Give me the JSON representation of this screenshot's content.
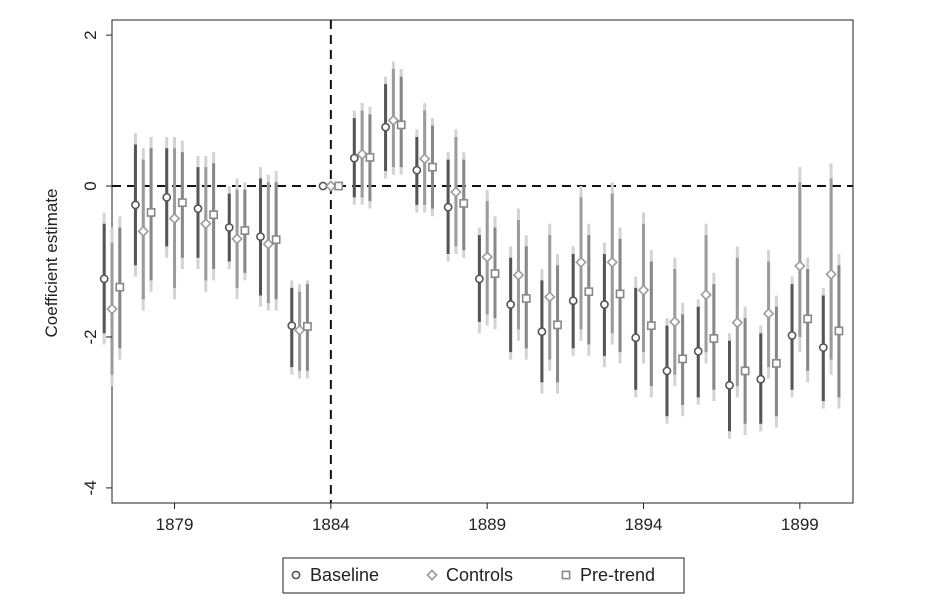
{
  "chart_data": {
    "type": "scatter",
    "xlabel": "",
    "ylabel": "Coefficient estimate",
    "xlim": [
      1877,
      1900.7
    ],
    "ylim": [
      -4.2,
      2.2
    ],
    "x_ticks": [
      "1879",
      "1884",
      "1889",
      "1894",
      "1899"
    ],
    "y_ticks": [
      "2",
      "0",
      "-2",
      "-4"
    ],
    "reference_lines": {
      "vertical_x": 1884,
      "horizontal_y": 0
    },
    "legend_position": "bottom",
    "series": [
      {
        "name": "Baseline",
        "marker": "circle",
        "color": "#555555",
        "offset": -0.25,
        "x": [
          1877,
          1878,
          1879,
          1880,
          1881,
          1882,
          1883,
          1884,
          1885,
          1886,
          1887,
          1888,
          1889,
          1890,
          1891,
          1892,
          1893,
          1894,
          1895,
          1896,
          1897,
          1898,
          1899,
          1900
        ],
        "y": [
          -1.23,
          -0.25,
          -0.15,
          -0.3,
          -0.55,
          -0.67,
          -1.85,
          0.0,
          0.37,
          0.78,
          0.21,
          -0.28,
          -1.23,
          -1.57,
          -1.93,
          -1.52,
          -1.57,
          -2.01,
          -2.45,
          -2.19,
          -2.64,
          -2.56,
          -1.98,
          -2.14
        ],
        "ci95": [
          [
            -2.1,
            -0.35
          ],
          [
            -1.2,
            0.7
          ],
          [
            -0.95,
            0.65
          ],
          [
            -1.1,
            0.4
          ],
          [
            -1.1,
            0.0
          ],
          [
            -1.6,
            0.25
          ],
          [
            -2.5,
            -1.25
          ],
          [
            0.0,
            0.0
          ],
          [
            -0.25,
            1.0
          ],
          [
            0.1,
            1.45
          ],
          [
            -0.35,
            0.75
          ],
          [
            -1.0,
            0.45
          ],
          [
            -1.95,
            -0.55
          ],
          [
            -2.3,
            -0.8
          ],
          [
            -2.75,
            -1.1
          ],
          [
            -2.25,
            -0.8
          ],
          [
            -2.4,
            -0.75
          ],
          [
            -2.8,
            -1.2
          ],
          [
            -3.15,
            -1.75
          ],
          [
            -2.9,
            -1.5
          ],
          [
            -3.35,
            -1.95
          ],
          [
            -3.25,
            -1.85
          ],
          [
            -2.8,
            -1.2
          ],
          [
            -2.95,
            -1.35
          ]
        ],
        "ci90": [
          [
            -1.95,
            -0.5
          ],
          [
            -1.05,
            0.55
          ],
          [
            -0.8,
            0.5
          ],
          [
            -0.95,
            0.25
          ],
          [
            -1.0,
            -0.1
          ],
          [
            -1.45,
            0.1
          ],
          [
            -2.4,
            -1.35
          ],
          [
            0.0,
            0.0
          ],
          [
            -0.15,
            0.9
          ],
          [
            0.2,
            1.35
          ],
          [
            -0.25,
            0.65
          ],
          [
            -0.9,
            0.35
          ],
          [
            -1.8,
            -0.65
          ],
          [
            -2.2,
            -0.95
          ],
          [
            -2.6,
            -1.25
          ],
          [
            -2.15,
            -0.9
          ],
          [
            -2.25,
            -0.9
          ],
          [
            -2.7,
            -1.35
          ],
          [
            -3.05,
            -1.85
          ],
          [
            -2.8,
            -1.6
          ],
          [
            -3.25,
            -2.05
          ],
          [
            -3.15,
            -1.95
          ],
          [
            -2.7,
            -1.3
          ],
          [
            -2.85,
            -1.45
          ]
        ]
      },
      {
        "name": "Controls",
        "marker": "diamond",
        "color": "#9b9b9b",
        "offset": 0.0,
        "x": [
          1877,
          1878,
          1879,
          1880,
          1881,
          1882,
          1883,
          1884,
          1885,
          1886,
          1887,
          1888,
          1889,
          1890,
          1891,
          1892,
          1893,
          1894,
          1895,
          1896,
          1897,
          1898,
          1899,
          1900
        ],
        "y": [
          -1.63,
          -0.6,
          -0.43,
          -0.5,
          -0.7,
          -0.77,
          -1.91,
          0.0,
          0.42,
          0.87,
          0.36,
          -0.08,
          -0.94,
          -1.18,
          -1.47,
          -1.01,
          -1.01,
          -1.38,
          -1.8,
          -1.44,
          -1.81,
          -1.69,
          -1.06,
          -1.17
        ],
        "ci95": [
          [
            -2.65,
            -0.55
          ],
          [
            -1.65,
            0.5
          ],
          [
            -1.5,
            0.65
          ],
          [
            -1.4,
            0.4
          ],
          [
            -1.5,
            0.1
          ],
          [
            -1.65,
            0.15
          ],
          [
            -2.55,
            -1.3
          ],
          [
            0.0,
            0.0
          ],
          [
            -0.25,
            1.1
          ],
          [
            0.15,
            1.65
          ],
          [
            -0.35,
            1.1
          ],
          [
            -0.9,
            0.75
          ],
          [
            -1.85,
            -0.05
          ],
          [
            -2.05,
            -0.3
          ],
          [
            -2.45,
            -0.5
          ],
          [
            -2.05,
            0.0
          ],
          [
            -2.1,
            0.05
          ],
          [
            -2.35,
            -0.35
          ],
          [
            -2.65,
            -0.95
          ],
          [
            -2.35,
            -0.5
          ],
          [
            -2.8,
            -0.8
          ],
          [
            -2.55,
            -0.85
          ],
          [
            -2.2,
            0.25
          ],
          [
            -2.5,
            0.3
          ]
        ],
        "ci90": [
          [
            -2.5,
            -0.75
          ],
          [
            -1.5,
            0.35
          ],
          [
            -1.35,
            0.5
          ],
          [
            -1.25,
            0.25
          ],
          [
            -1.35,
            -0.05
          ],
          [
            -1.55,
            0.05
          ],
          [
            -2.45,
            -1.4
          ],
          [
            0.0,
            0.0
          ],
          [
            -0.15,
            1.0
          ],
          [
            0.25,
            1.55
          ],
          [
            -0.25,
            1.0
          ],
          [
            -0.8,
            0.65
          ],
          [
            -1.7,
            -0.2
          ],
          [
            -1.9,
            -0.45
          ],
          [
            -2.3,
            -0.65
          ],
          [
            -1.9,
            -0.15
          ],
          [
            -1.95,
            -0.1
          ],
          [
            -2.2,
            -0.5
          ],
          [
            -2.5,
            -1.1
          ],
          [
            -2.2,
            -0.65
          ],
          [
            -2.65,
            -0.95
          ],
          [
            -2.4,
            -1.0
          ],
          [
            -2.0,
            0.05
          ],
          [
            -2.3,
            0.1
          ]
        ]
      },
      {
        "name": "Pre-trend",
        "marker": "square",
        "color": "#888888",
        "offset": 0.25,
        "x": [
          1877,
          1878,
          1879,
          1880,
          1881,
          1882,
          1883,
          1884,
          1885,
          1886,
          1887,
          1888,
          1889,
          1890,
          1891,
          1892,
          1893,
          1894,
          1895,
          1896,
          1897,
          1898,
          1899,
          1900
        ],
        "y": [
          -1.34,
          -0.35,
          -0.22,
          -0.38,
          -0.59,
          -0.71,
          -1.86,
          0.0,
          0.38,
          0.81,
          0.25,
          -0.23,
          -1.16,
          -1.49,
          -1.84,
          -1.4,
          -1.43,
          -1.85,
          -2.29,
          -2.02,
          -2.45,
          -2.35,
          -1.76,
          -1.92
        ],
        "ci95": [
          [
            -2.3,
            -0.4
          ],
          [
            -1.4,
            0.65
          ],
          [
            -1.1,
            0.6
          ],
          [
            -1.25,
            0.45
          ],
          [
            -1.25,
            0.05
          ],
          [
            -1.65,
            0.2
          ],
          [
            -2.55,
            -1.25
          ],
          [
            0.0,
            0.0
          ],
          [
            -0.3,
            1.05
          ],
          [
            0.15,
            1.55
          ],
          [
            -0.4,
            0.9
          ],
          [
            -0.95,
            0.45
          ],
          [
            -1.9,
            -0.4
          ],
          [
            -2.3,
            -0.65
          ],
          [
            -2.75,
            -0.9
          ],
          [
            -2.25,
            -0.5
          ],
          [
            -2.35,
            -0.55
          ],
          [
            -2.8,
            -0.85
          ],
          [
            -3.05,
            -1.55
          ],
          [
            -2.85,
            -1.15
          ],
          [
            -3.3,
            -1.6
          ],
          [
            -3.2,
            -1.45
          ],
          [
            -2.6,
            -0.95
          ],
          [
            -2.95,
            -0.9
          ]
        ],
        "ci90": [
          [
            -2.15,
            -0.55
          ],
          [
            -1.25,
            0.5
          ],
          [
            -0.95,
            0.45
          ],
          [
            -1.1,
            0.3
          ],
          [
            -1.15,
            -0.05
          ],
          [
            -1.5,
            0.05
          ],
          [
            -2.45,
            -1.3
          ],
          [
            0.0,
            0.0
          ],
          [
            -0.2,
            0.95
          ],
          [
            0.25,
            1.45
          ],
          [
            -0.3,
            0.8
          ],
          [
            -0.85,
            0.35
          ],
          [
            -1.75,
            -0.55
          ],
          [
            -2.15,
            -0.8
          ],
          [
            -2.6,
            -1.05
          ],
          [
            -2.1,
            -0.65
          ],
          [
            -2.2,
            -0.7
          ],
          [
            -2.65,
            -1.0
          ],
          [
            -2.9,
            -1.7
          ],
          [
            -2.7,
            -1.3
          ],
          [
            -3.15,
            -1.75
          ],
          [
            -3.05,
            -1.6
          ],
          [
            -2.45,
            -1.1
          ],
          [
            -2.8,
            -1.05
          ]
        ]
      }
    ]
  }
}
